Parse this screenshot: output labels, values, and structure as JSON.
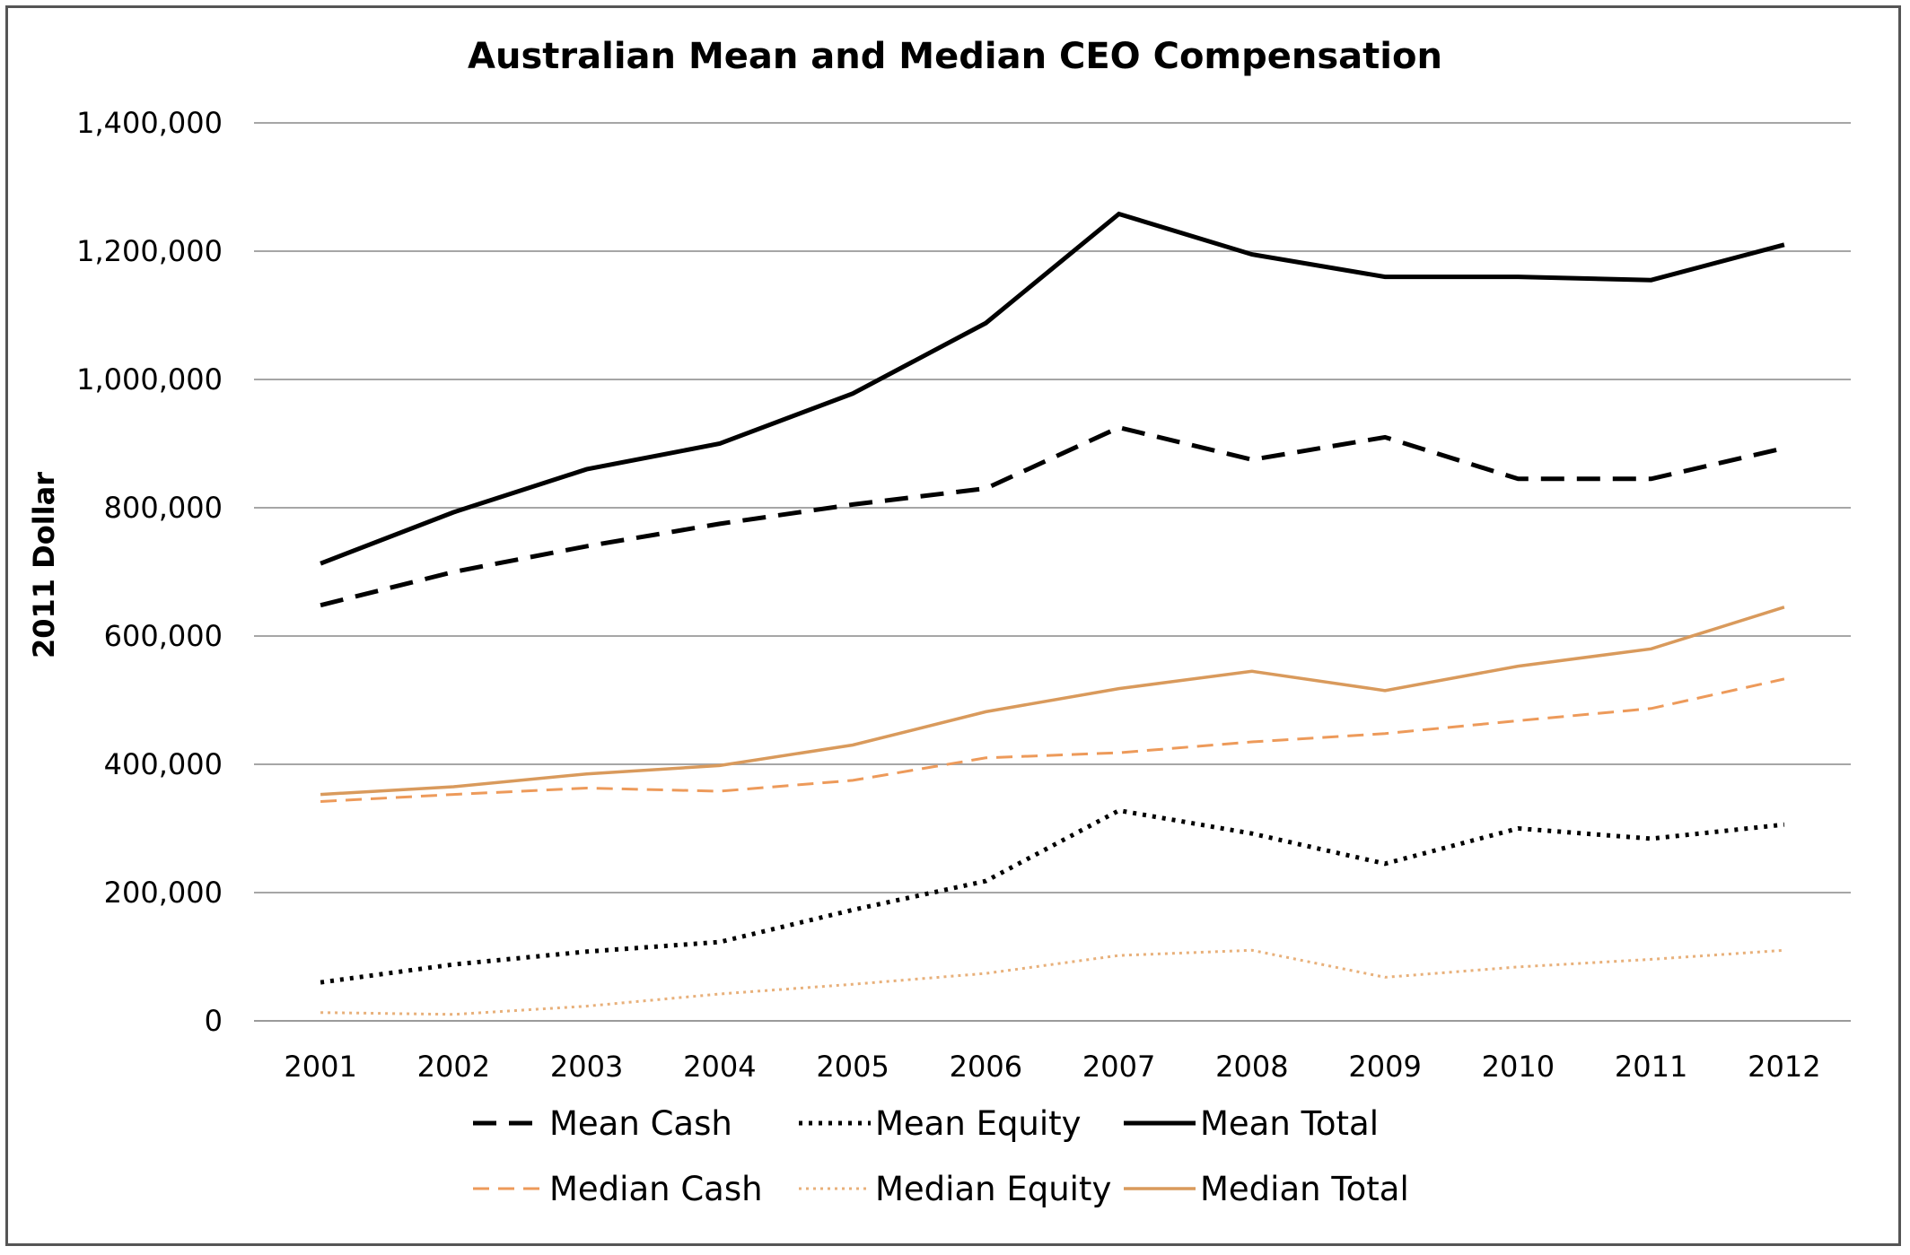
{
  "chart_data": {
    "type": "line",
    "title": "Australian Mean and Median CEO Compensation",
    "xlabel": "",
    "ylabel": "2011 Dollar",
    "ylim": [
      0,
      1400000
    ],
    "yticks": [
      0,
      200000,
      400000,
      600000,
      800000,
      1000000,
      1200000,
      1400000
    ],
    "ytick_labels": [
      "0",
      "200,000",
      "400,000",
      "600,000",
      "800,000",
      "1,000,000",
      "1,200,000",
      "1,400,000"
    ],
    "grid": "horizontal",
    "legend_position": "bottom",
    "categories": [
      "2001",
      "2002",
      "2003",
      "2004",
      "2005",
      "2006",
      "2007",
      "2008",
      "2009",
      "2010",
      "2011",
      "2012"
    ],
    "series": [
      {
        "name": "Mean Cash",
        "color": "#000000",
        "style": "dashed-bold",
        "values": [
          648000,
          700000,
          740000,
          775000,
          805000,
          830000,
          925000,
          875000,
          910000,
          845000,
          845000,
          893000
        ]
      },
      {
        "name": "Mean Equity",
        "color": "#000000",
        "style": "dotted-bold",
        "values": [
          60000,
          88000,
          108000,
          123000,
          173000,
          218000,
          328000,
          292000,
          245000,
          300000,
          284000,
          306000
        ]
      },
      {
        "name": "Mean Total",
        "color": "#000000",
        "style": "solid-bold",
        "values": [
          713000,
          793000,
          860000,
          900000,
          978000,
          1088000,
          1258000,
          1195000,
          1160000,
          1160000,
          1155000,
          1210000
        ]
      },
      {
        "name": "Median Cash",
        "color": "#ED9A5A",
        "style": "dashed",
        "values": [
          342000,
          353000,
          363000,
          358000,
          375000,
          410000,
          418000,
          435000,
          448000,
          468000,
          487000,
          533000
        ]
      },
      {
        "name": "Median Equity",
        "color": "#E8B07A",
        "style": "dotted",
        "values": [
          13000,
          10000,
          23000,
          42000,
          57000,
          74000,
          102000,
          110000,
          68000,
          84000,
          96000,
          110000
        ]
      },
      {
        "name": "Median Total",
        "color": "#D99A5C",
        "style": "solid",
        "values": [
          353000,
          365000,
          385000,
          398000,
          430000,
          482000,
          518000,
          545000,
          515000,
          553000,
          580000,
          645000
        ]
      }
    ]
  }
}
